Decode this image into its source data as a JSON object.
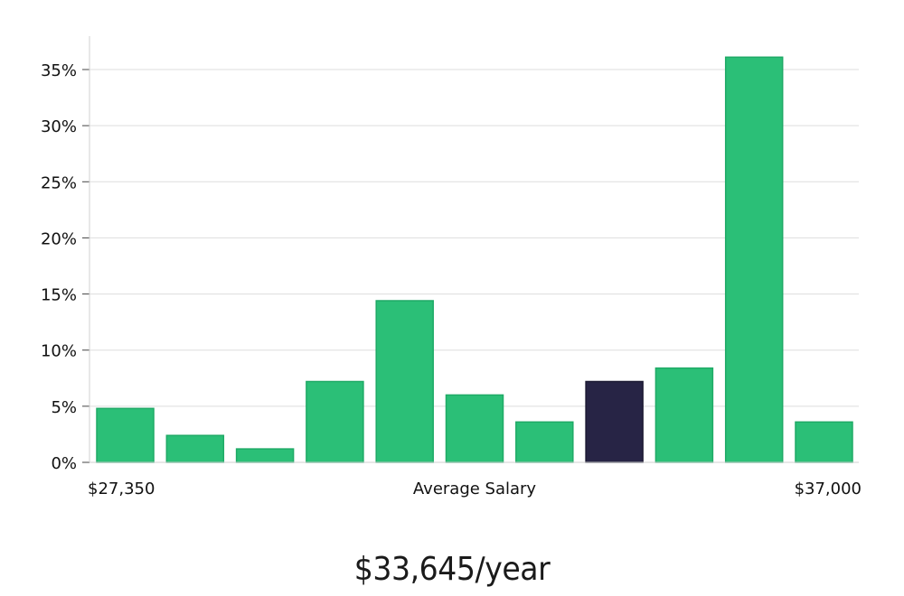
{
  "chart_data": {
    "type": "bar",
    "title": "",
    "xlabel": "Average Salary",
    "ylabel": "",
    "x_range_labels": {
      "min": "$27,350",
      "max": "$37,000"
    },
    "ylim": [
      0,
      38
    ],
    "yticks": [
      0,
      5,
      10,
      15,
      20,
      25,
      30,
      35
    ],
    "ytick_labels": [
      "0%",
      "5%",
      "10%",
      "15%",
      "20%",
      "25%",
      "30%",
      "35%"
    ],
    "grid": true,
    "values": [
      4.8,
      2.4,
      1.2,
      7.2,
      14.4,
      6.0,
      3.6,
      7.2,
      8.4,
      36.1,
      3.6
    ],
    "highlight_index": 7,
    "colors": {
      "bar": "#2bbf77",
      "bar_edge": "#1faa66",
      "highlight": "#272445",
      "grid": "#dddddd",
      "axis": "#d0d0d0"
    }
  },
  "summary": {
    "average_salary": "$33,645/year"
  }
}
